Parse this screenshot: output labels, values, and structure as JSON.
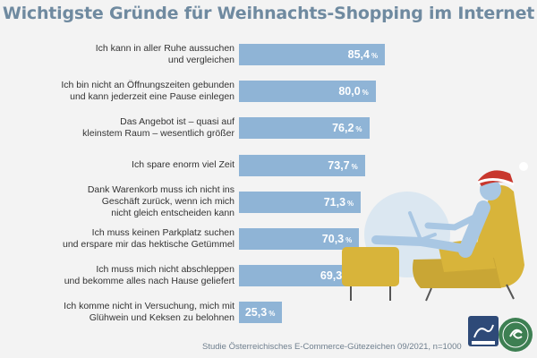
{
  "chart_data": {
    "type": "bar",
    "orientation": "horizontal",
    "title": "Wichtigste Gründe für Weihnachts-Shopping im Internet",
    "categories": [
      [
        "Ich kann in aller Ruhe aussuchen",
        "und vergleichen"
      ],
      [
        "Ich bin nicht an Öffnungszeiten gebunden",
        "und kann jederzeit eine Pause einlegen"
      ],
      [
        "Das Angebot ist – quasi auf",
        "kleinstem Raum – wesentlich größer"
      ],
      [
        "Ich spare enorm viel Zeit"
      ],
      [
        "Dank Warenkorb muss ich nicht ins",
        "Geschäft zurück, wenn ich mich",
        "nicht gleich entscheiden kann"
      ],
      [
        "Ich muss keinen Parkplatz suchen",
        "und erspare mir das hektische Getümmel"
      ],
      [
        "Ich muss mich nicht abschleppen",
        "und bekomme alles nach Hause geliefert"
      ],
      [
        "Ich komme nicht in Versuchung, mich mit",
        "Glühwein und Keksen zu belohnen"
      ]
    ],
    "values": [
      85.4,
      80.0,
      76.2,
      73.7,
      71.3,
      70.3,
      69.3,
      25.3
    ],
    "value_labels": [
      "85,4",
      "80,0",
      "76,2",
      "73,7",
      "71,3",
      "70,3",
      "69,3",
      "25,3"
    ],
    "unit": "%",
    "xlim": [
      0,
      100
    ],
    "grid": false,
    "legend": "none",
    "bar_color": "#8fb4d6"
  },
  "source_note": "Studie Österreichisches E-Commerce-Gütezeichen 09/2021, n=1000",
  "seal_text": "E-COMMERCE GÜTEZEICHEN",
  "colors": {
    "title": "#6f8aa0",
    "chair": "#d8b43a",
    "chair_dark": "#b8952a",
    "person": "#a9c7e3",
    "hat": "#c8372d"
  }
}
